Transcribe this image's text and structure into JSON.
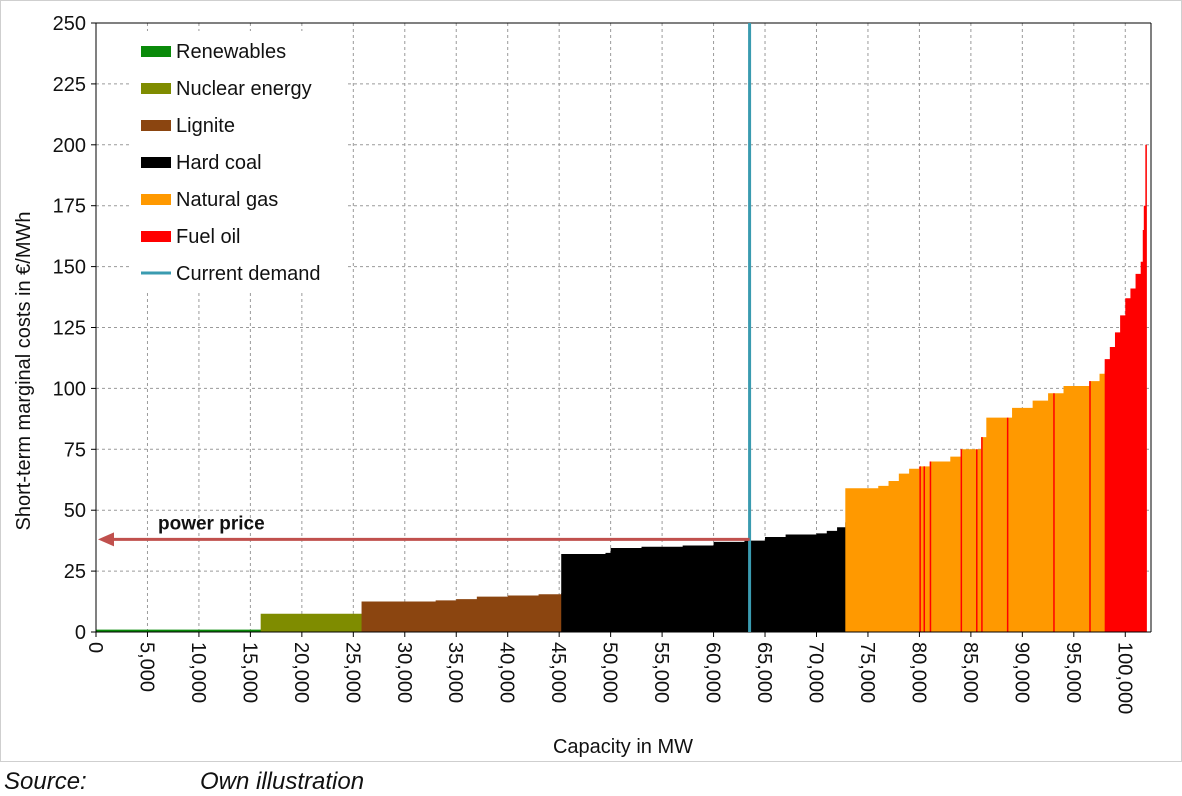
{
  "chart_data": {
    "type": "area",
    "xlabel": "Capacity in MW",
    "ylabel": "Short-term marginal costs in €/MWh",
    "xlim": [
      0,
      102500
    ],
    "ylim": [
      0,
      250
    ],
    "x_ticks": [
      0,
      5000,
      10000,
      15000,
      20000,
      25000,
      30000,
      35000,
      40000,
      45000,
      50000,
      55000,
      60000,
      65000,
      70000,
      75000,
      80000,
      85000,
      90000,
      95000,
      100000
    ],
    "x_tick_labels": [
      "0",
      "5,000",
      "10,000",
      "15,000",
      "20,000",
      "25,000",
      "30,000",
      "35,000",
      "40,000",
      "45,000",
      "50,000",
      "55,000",
      "60,000",
      "65,000",
      "70,000",
      "75,000",
      "80,000",
      "85,000",
      "90,000",
      "95,000",
      "100,000"
    ],
    "y_ticks": [
      0,
      25,
      50,
      75,
      100,
      125,
      150,
      175,
      200,
      225,
      250
    ],
    "grid": true,
    "legend_position": "top-left",
    "series": [
      {
        "name": "Renewables",
        "color": "#0a8a0a",
        "points": [
          [
            0,
            1
          ],
          [
            16000,
            1
          ]
        ]
      },
      {
        "name": "Nuclear energy",
        "color": "#7f8c00",
        "points": [
          [
            16000,
            7.5
          ],
          [
            25800,
            7.5
          ]
        ]
      },
      {
        "name": "Lignite",
        "color": "#8b4510",
        "points": [
          [
            25800,
            12.5
          ],
          [
            30000,
            12.5
          ],
          [
            33000,
            13
          ],
          [
            35000,
            13.5
          ],
          [
            37000,
            14.5
          ],
          [
            40000,
            15
          ],
          [
            43000,
            15.5
          ],
          [
            45200,
            16
          ]
        ]
      },
      {
        "name": "Hard coal",
        "color": "#000000",
        "points": [
          [
            45200,
            32
          ],
          [
            49500,
            32.5
          ],
          [
            50000,
            34.5
          ],
          [
            53000,
            35
          ],
          [
            57000,
            35.5
          ],
          [
            60000,
            37
          ],
          [
            63000,
            37.5
          ],
          [
            65000,
            39
          ],
          [
            67000,
            40
          ],
          [
            70000,
            40.5
          ],
          [
            71000,
            41.5
          ],
          [
            72000,
            43
          ],
          [
            72800,
            45
          ]
        ]
      },
      {
        "name": "Natural gas",
        "color": "#ff9900",
        "points": [
          [
            72800,
            59
          ],
          [
            76000,
            60
          ],
          [
            77000,
            62
          ],
          [
            78000,
            65
          ],
          [
            79000,
            67
          ],
          [
            80000,
            68
          ],
          [
            81000,
            70
          ],
          [
            83000,
            72
          ],
          [
            84000,
            75
          ],
          [
            86000,
            80
          ],
          [
            86500,
            88
          ],
          [
            88000,
            88
          ],
          [
            89000,
            92
          ],
          [
            91000,
            95
          ],
          [
            92500,
            98
          ],
          [
            94000,
            101
          ],
          [
            96500,
            103
          ],
          [
            97500,
            106
          ],
          [
            98000,
            107
          ]
        ]
      },
      {
        "name": "Fuel oil",
        "color": "#ff0000",
        "points": [
          [
            98000,
            112
          ],
          [
            98500,
            117
          ],
          [
            99000,
            123
          ],
          [
            99500,
            130
          ],
          [
            100000,
            137
          ],
          [
            100500,
            141
          ],
          [
            101000,
            147
          ],
          [
            101500,
            152
          ],
          [
            101700,
            165
          ],
          [
            101800,
            175
          ],
          [
            101950,
            200
          ]
        ]
      }
    ],
    "demand_line": {
      "name": "Current demand",
      "color": "#3a9bb0",
      "x": 63500
    },
    "annotation": {
      "text": "power price",
      "color": "#c0504d",
      "y": 38
    },
    "source_label": "Source:",
    "source_text": "Own illustration"
  }
}
